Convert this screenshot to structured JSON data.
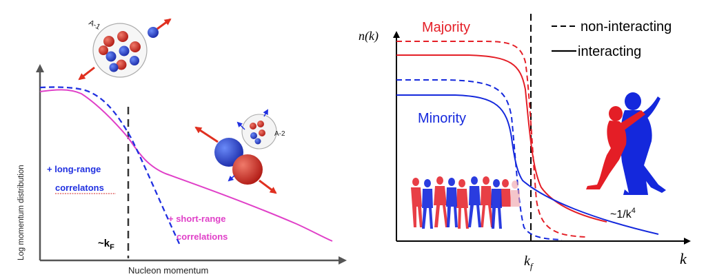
{
  "left_panel": {
    "y_axis_label": "Log momentum distribution",
    "x_axis_label": "Nucleon momentum",
    "kf_marker": {
      "prefix": "~k",
      "subscript": "F"
    },
    "long_range_note": [
      "+ long-range",
      "correlatons"
    ],
    "short_range_note": [
      "+ short-range",
      "correlations"
    ],
    "cluster_label_a1": "A-1",
    "cluster_label_a2": "A-2",
    "colors": {
      "pink": "#e040c8",
      "blue": "#2030e0",
      "red": "#e03020",
      "dashed_marker": "#333333"
    }
  },
  "right_panel": {
    "y_axis_label": "n(k)",
    "x_axis_label": "k",
    "kf_marker": {
      "base": "k",
      "subscript": "f"
    },
    "majority_label": "Majority",
    "minority_label": "Minority",
    "legend": [
      {
        "style": "dashed",
        "label": "non-interacting"
      },
      {
        "style": "solid",
        "label": "interacting"
      }
    ],
    "tail_label": {
      "base": "~1/k",
      "superscript": "4"
    },
    "colors": {
      "majority": "#e41e26",
      "minority": "#1428dc",
      "dancers_red": "#e41e26",
      "dancers_blue": "#1428dc"
    }
  }
}
